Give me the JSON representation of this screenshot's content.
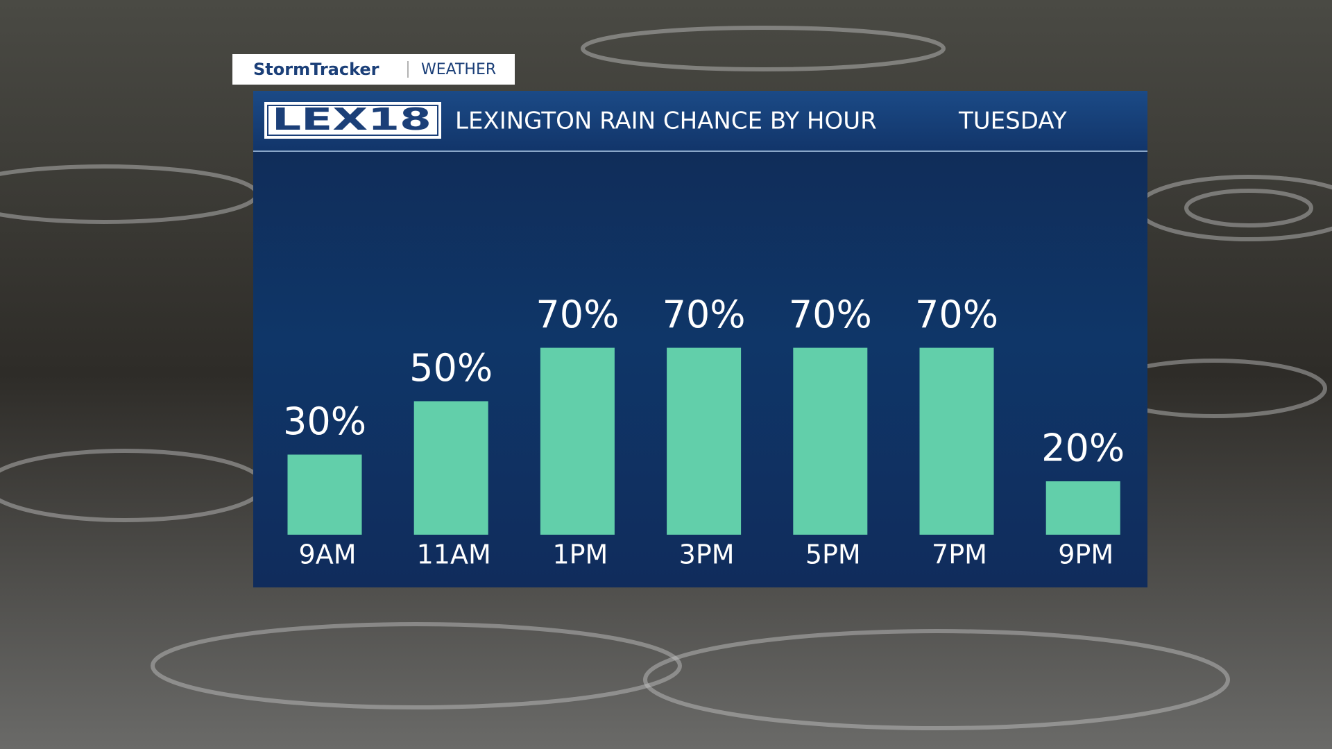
{
  "brand": "StormTracker",
  "section": "WEATHER",
  "logo": "LEX18",
  "chart_data": {
    "type": "bar",
    "title": "LEXINGTON RAIN CHANCE BY HOUR",
    "subtitle": "TUESDAY",
    "categories": [
      "9AM",
      "11AM",
      "1PM",
      "3PM",
      "5PM",
      "7PM",
      "9PM"
    ],
    "values": [
      30,
      50,
      70,
      70,
      70,
      70,
      20
    ],
    "value_labels": [
      "30%",
      "50%",
      "70%",
      "70%",
      "70%",
      "70%",
      "20%"
    ],
    "color": "#62cfaa"
  }
}
